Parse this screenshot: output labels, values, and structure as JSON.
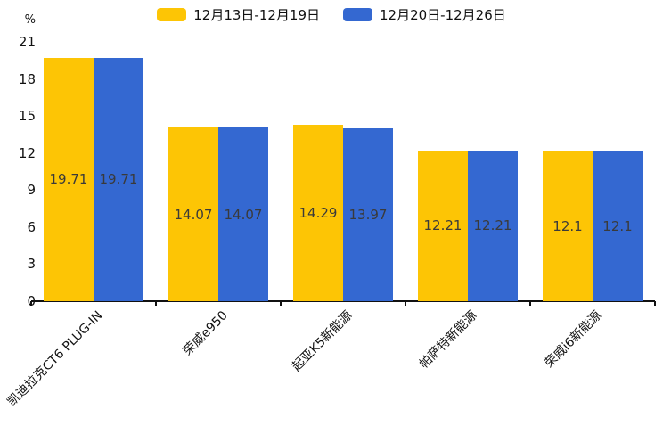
{
  "chart_data": {
    "type": "bar",
    "title": "",
    "ylabel": "%",
    "xlabel": "",
    "ylim": [
      0,
      21
    ],
    "yticks": [
      0,
      3,
      6,
      9,
      12,
      15,
      18,
      21
    ],
    "grid": false,
    "legend_position": "top-center",
    "categories": [
      "凯迪拉克CT6 PLUG-IN",
      "荣威e950",
      "起亚K5新能源",
      "帕萨特新能源",
      "荣威i6新能源"
    ],
    "series": [
      {
        "name": "12月13日-12月19日",
        "color": "#FDC505",
        "values": [
          19.71,
          14.07,
          14.29,
          12.21,
          12.1
        ]
      },
      {
        "name": "12月20日-12月26日",
        "color": "#3468D1",
        "values": [
          19.71,
          14.07,
          13.97,
          12.21,
          12.1
        ]
      }
    ],
    "value_label_color": "#3a3a3a",
    "axis_color": "#111111"
  }
}
